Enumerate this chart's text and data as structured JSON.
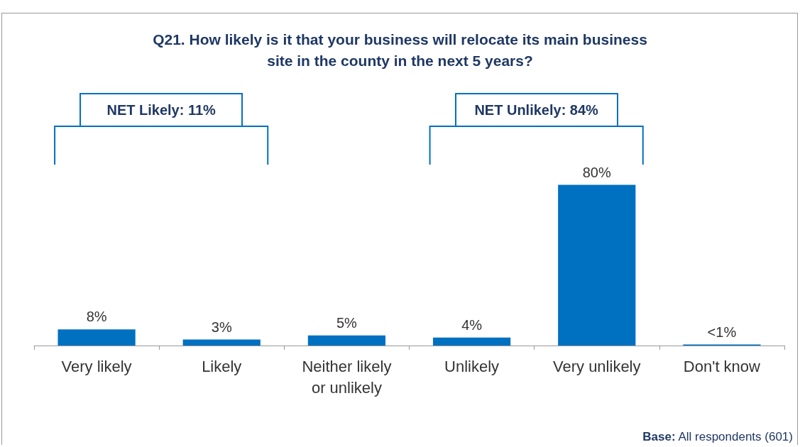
{
  "chart_data": {
    "type": "bar",
    "title": "Q21. How likely is it that your business will relocate its main business\nsite in the county in the next 5 years?",
    "categories": [
      "Very likely",
      "Likely",
      "Neither likely\nor unlikely",
      "Unlikely",
      "Very unlikely",
      "Don't know"
    ],
    "values": [
      8,
      3,
      5,
      4,
      80,
      0.5
    ],
    "value_labels": [
      "8%",
      "3%",
      "5%",
      "4%",
      "80%",
      "<1%"
    ],
    "color": "#0070c0",
    "annotations": [
      "NET Likely: 11%",
      "NET Unlikely: 84%",
      "Base: All respondents (601)"
    ]
  }
}
